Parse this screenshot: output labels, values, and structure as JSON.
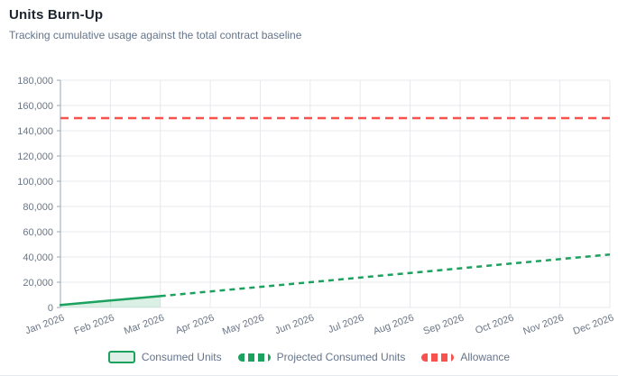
{
  "chart_data": {
    "type": "line",
    "title": "Units Burn-Up",
    "subtitle": "Tracking cumulative usage against the total contract baseline",
    "categories": [
      "Jan 2026",
      "Feb 2026",
      "Mar 2026",
      "Apr 2026",
      "May 2026",
      "Jun 2026",
      "Jul 2026",
      "Aug 2026",
      "Sep 2026",
      "Oct 2026",
      "Nov 2026",
      "Dec 2026"
    ],
    "series": [
      {
        "name": "Consumed Units",
        "type": "area-line",
        "style": "solid",
        "values": [
          2000,
          5500,
          9000,
          null,
          null,
          null,
          null,
          null,
          null,
          null,
          null,
          null
        ]
      },
      {
        "name": "Projected Consumed Units",
        "type": "line",
        "style": "dashed",
        "values": [
          null,
          null,
          9000,
          12700,
          16300,
          20000,
          23700,
          27300,
          31000,
          34700,
          38300,
          42000
        ]
      },
      {
        "name": "Allowance",
        "type": "hline",
        "style": "dashed",
        "value": 150000
      }
    ],
    "xlabel": "",
    "ylabel": "",
    "ylim": [
      0,
      180000
    ],
    "ytick_step": 20000,
    "ytick_format": "thousands-comma",
    "x_label_rotation": -20,
    "grid": true,
    "legend_position": "bottom"
  },
  "colors": {
    "green": "#1da15f",
    "green_fill": "rgba(29,161,95,0.16)",
    "red": "#f8514e",
    "grid": "#e6e8ec",
    "axis": "#9aa4b2",
    "tick_text": "#6b7686",
    "title_text": "#1c2430",
    "subtitle_text": "#64748b"
  }
}
